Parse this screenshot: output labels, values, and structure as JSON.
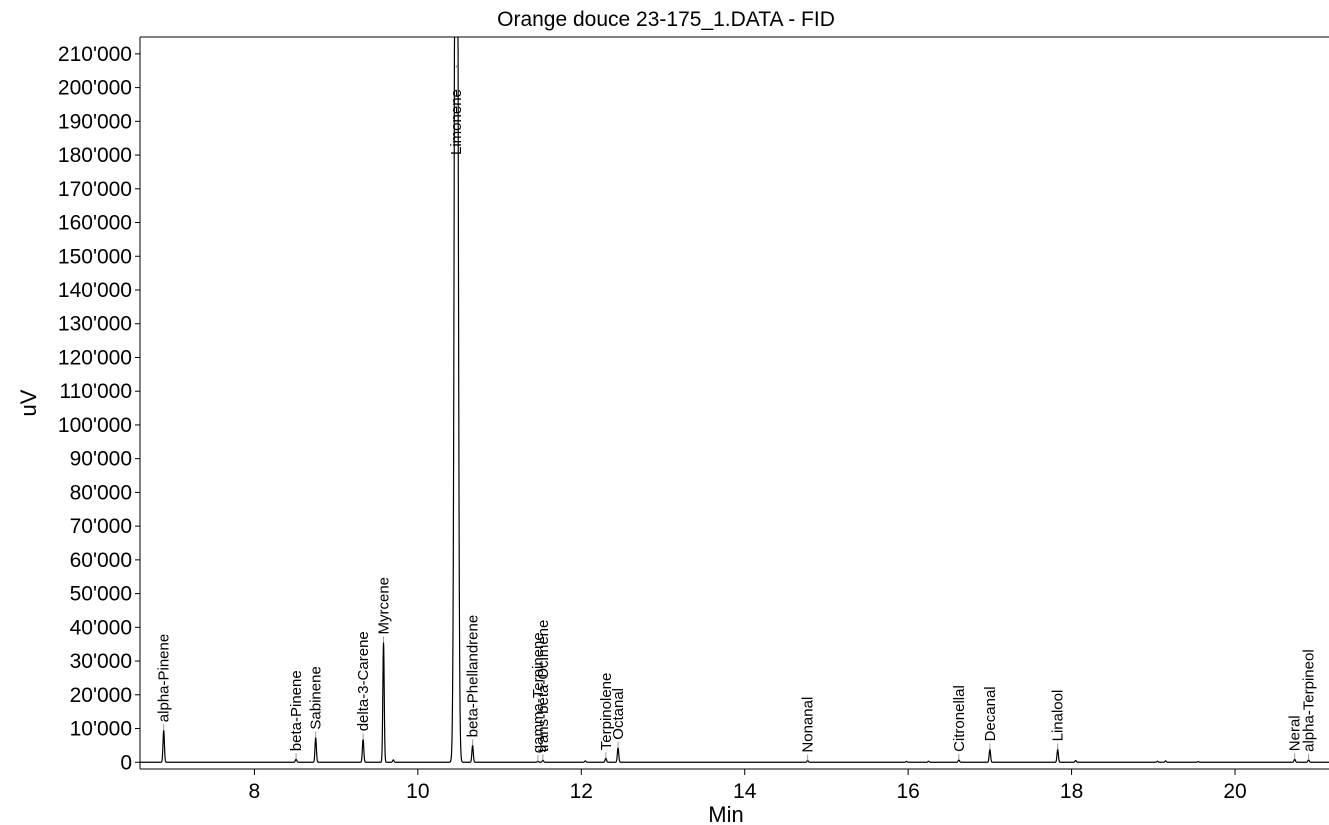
{
  "chart_data": {
    "type": "line",
    "title": "Orange douce 23-175_1.DATA - FID",
    "xlabel": "Min",
    "ylabel": "uV",
    "xlim": [
      6.6,
      21.15
    ],
    "ylim": [
      -2000,
      215000
    ],
    "xticks": [
      8,
      10,
      12,
      14,
      16,
      18,
      20
    ],
    "xtick_labels": [
      "8",
      "10",
      "12",
      "14",
      "16",
      "18",
      "20"
    ],
    "yticks": [
      0,
      10000,
      20000,
      30000,
      40000,
      50000,
      60000,
      70000,
      80000,
      90000,
      100000,
      110000,
      120000,
      130000,
      140000,
      150000,
      160000,
      170000,
      180000,
      190000,
      200000,
      210000
    ],
    "ytick_labels": [
      "0",
      "10'000",
      "20'000",
      "30'000",
      "40'000",
      "50'000",
      "60'000",
      "70'000",
      "80'000",
      "90'000",
      "100'000",
      "110'000",
      "120'000",
      "130'000",
      "140'000",
      "150'000",
      "160'000",
      "170'000",
      "180'000",
      "190'000",
      "200'000",
      "210'000"
    ],
    "grid": false,
    "series": [
      {
        "color": "#000000",
        "peaks": [
          {
            "rt": 6.89,
            "height": 9500,
            "label": "alpha-Pinene"
          },
          {
            "rt": 8.51,
            "height": 900,
            "label": "beta-Pinene"
          },
          {
            "rt": 8.75,
            "height": 7300,
            "label": "Sabinene"
          },
          {
            "rt": 9.33,
            "height": 6800,
            "label": "delta-3-Carene"
          },
          {
            "rt": 9.58,
            "height": 35500,
            "label": "Myrcene"
          },
          {
            "rt": 9.7,
            "height": 700,
            "label": ""
          },
          {
            "rt": 10.47,
            "height": 460000,
            "label": "Limonene"
          },
          {
            "rt": 10.67,
            "height": 5000,
            "label": "beta-Phellandrene"
          },
          {
            "rt": 11.47,
            "height": 300,
            "label": "gamma-Terpinene"
          },
          {
            "rt": 11.53,
            "height": 600,
            "label": "trans-beta-Ocimene"
          },
          {
            "rt": 12.05,
            "height": 400,
            "label": ""
          },
          {
            "rt": 12.3,
            "height": 1200,
            "label": "Terpinolene"
          },
          {
            "rt": 12.45,
            "height": 4300,
            "label": "Octanal"
          },
          {
            "rt": 14.77,
            "height": 500,
            "label": "Nonanal"
          },
          {
            "rt": 15.98,
            "height": 250,
            "label": ""
          },
          {
            "rt": 16.25,
            "height": 300,
            "label": ""
          },
          {
            "rt": 16.62,
            "height": 700,
            "label": "Citronellal"
          },
          {
            "rt": 17.0,
            "height": 3800,
            "label": "Decanal"
          },
          {
            "rt": 17.83,
            "height": 3800,
            "label": "Linalool"
          },
          {
            "rt": 18.05,
            "height": 500,
            "label": ""
          },
          {
            "rt": 19.05,
            "height": 300,
            "label": ""
          },
          {
            "rt": 19.15,
            "height": 400,
            "label": ""
          },
          {
            "rt": 19.55,
            "height": 200,
            "label": ""
          },
          {
            "rt": 20.73,
            "height": 900,
            "label": "Neral"
          },
          {
            "rt": 20.9,
            "height": 700,
            "label": "alpha-Terpineol"
          }
        ]
      }
    ]
  }
}
